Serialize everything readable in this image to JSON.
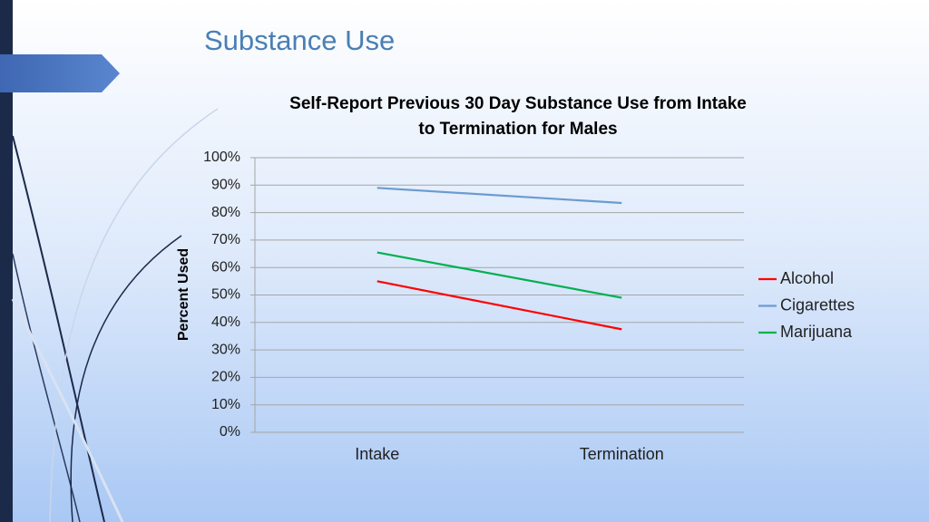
{
  "slide": {
    "title": "Substance Use"
  },
  "chart_data": {
    "type": "line",
    "title": [
      "Self-Report Previous 30 Day Substance Use from Intake",
      "to Termination for Males"
    ],
    "y_label": "Percent Used",
    "categories": [
      "Intake",
      "Termination"
    ],
    "series": [
      {
        "name": "Alcohol",
        "color": "#ff0000",
        "values": [
          55,
          37.5
        ]
      },
      {
        "name": "Cigarettes",
        "color": "#6b9bd1",
        "values": [
          89,
          83.5
        ]
      },
      {
        "name": "Marijuana",
        "color": "#00b050",
        "values": [
          65.5,
          49
        ]
      }
    ],
    "ylim": [
      0,
      100
    ],
    "yticks": [
      {
        "value": 0,
        "label": "0%"
      },
      {
        "value": 10,
        "label": "10%"
      },
      {
        "value": 20,
        "label": "20%"
      },
      {
        "value": 30,
        "label": "30%"
      },
      {
        "value": 40,
        "label": "40%"
      },
      {
        "value": 50,
        "label": "50%"
      },
      {
        "value": 60,
        "label": "60%"
      },
      {
        "value": 70,
        "label": "70%"
      },
      {
        "value": 80,
        "label": "80%"
      },
      {
        "value": 90,
        "label": "90%"
      },
      {
        "value": 100,
        "label": "100%"
      }
    ],
    "grid": true,
    "legend": "right"
  }
}
